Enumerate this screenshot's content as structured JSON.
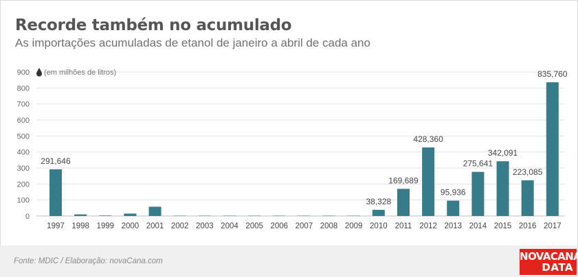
{
  "title": "Recorde também no acumulado",
  "subtitle": "As importações acumuladas de etanol de janeiro a abril de cada ano",
  "unit_note": "(em milhões de litros)",
  "source": "Fonte: MDIC / Elaboração: novaCana.com",
  "logo": {
    "line1": "NOVACANA",
    "line2": "DATA"
  },
  "colors": {
    "bar": "#377c8a",
    "grid": "#e3e3e3",
    "text": "#555555",
    "logo_bg": "#e2241c"
  },
  "icon": "drop-icon",
  "chart_data": {
    "type": "bar",
    "title": "Recorde também no acumulado",
    "subtitle": "As importações acumuladas de etanol de janeiro a abril de cada ano",
    "ylabel": "(em milhões de litros)",
    "ylim": [
      0,
      900
    ],
    "yticks": [
      0,
      100,
      200,
      300,
      400,
      500,
      600,
      700,
      800,
      900
    ],
    "grid": true,
    "categories": [
      "1997",
      "1998",
      "1999",
      "2000",
      "2001",
      "2002",
      "2003",
      "2004",
      "2005",
      "2006",
      "2007",
      "2008",
      "2009",
      "2010",
      "2011",
      "2012",
      "2013",
      "2014",
      "2015",
      "2016",
      "2017"
    ],
    "values": [
      291.646,
      10,
      3,
      15,
      58,
      2,
      2,
      2,
      2,
      2,
      2,
      2,
      2,
      38.328,
      169.689,
      428.36,
      95.936,
      275.641,
      342.091,
      223.085,
      835.76
    ],
    "data_labels": [
      "291,646",
      "",
      "",
      "",
      "",
      "",
      "",
      "",
      "",
      "",
      "",
      "",
      "",
      "38,328",
      "169,689",
      "428,360",
      "95,936",
      "275,641",
      "342,091",
      "223,085",
      "835,760"
    ]
  }
}
